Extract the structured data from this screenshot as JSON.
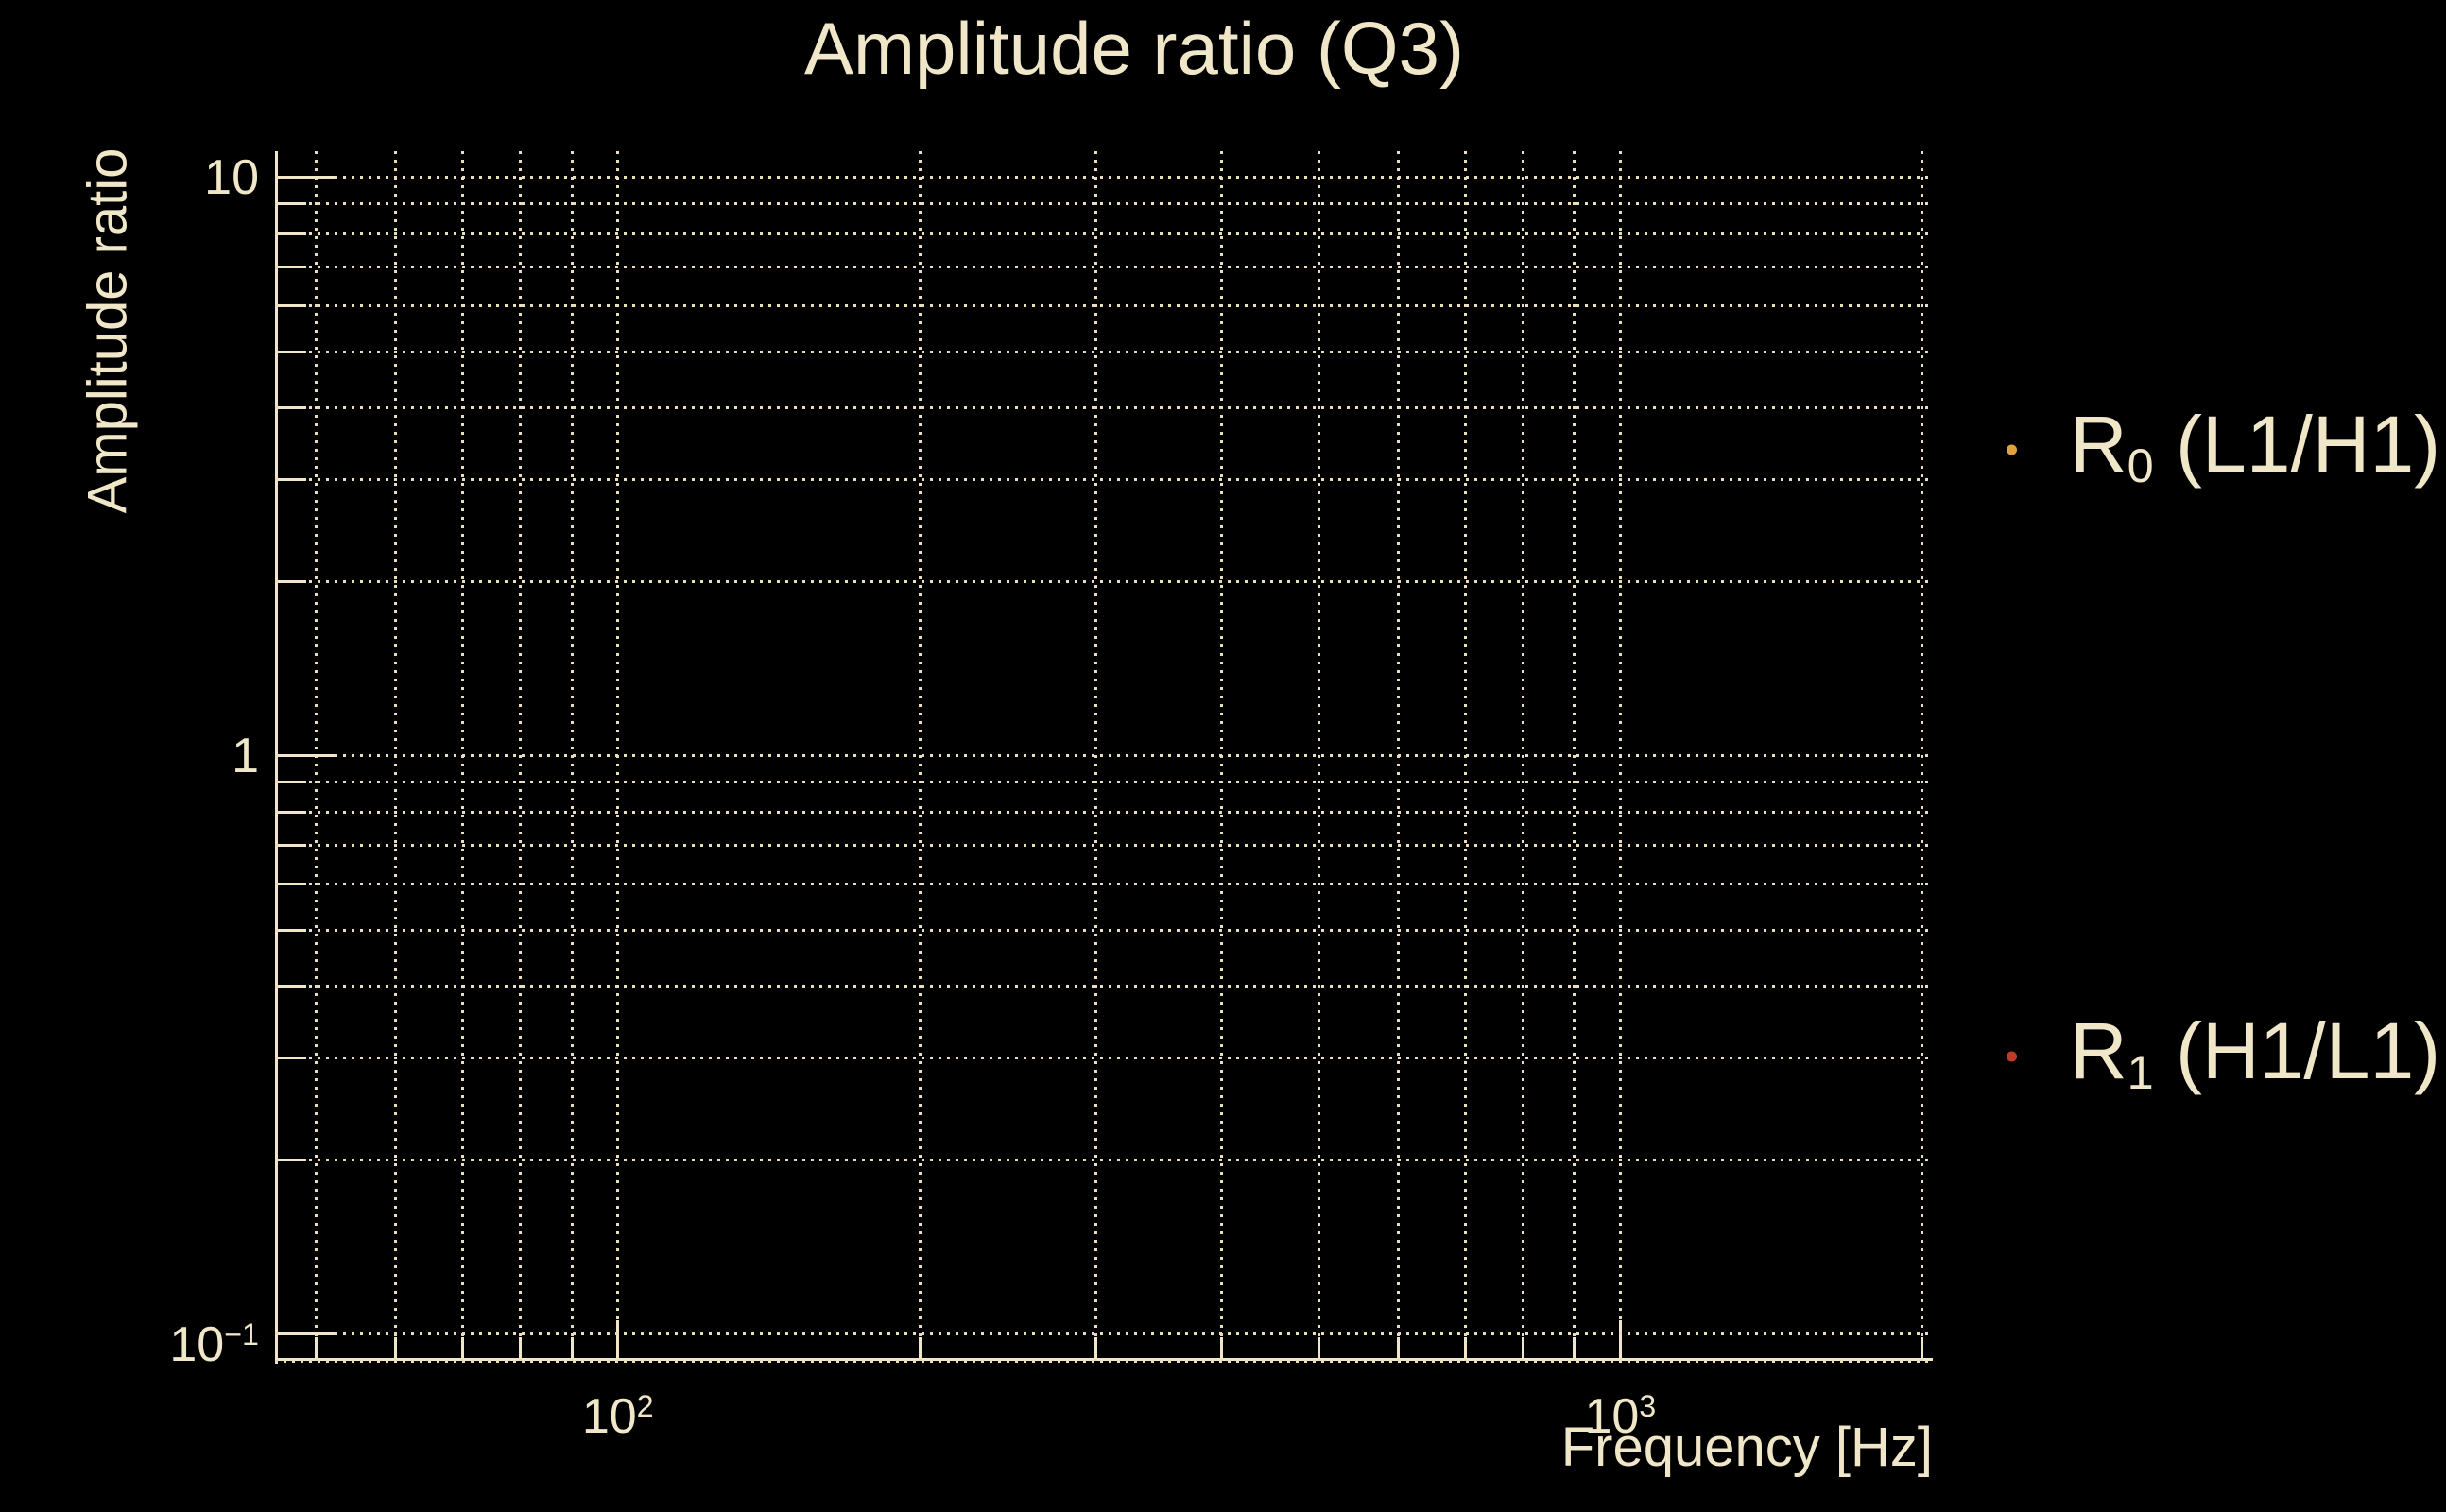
{
  "figure": {
    "background": "#000000",
    "text_color": "#F0E6C8",
    "grid_color": "#E9DDBD"
  },
  "chart_data": {
    "type": "scatter",
    "title": "Amplitude ratio (Q3)",
    "xlabel": "Frequency [Hz]",
    "ylabel": "Amplitude ratio",
    "xscale": "log",
    "yscale": "log",
    "xlim": [
      45.5,
      2050
    ],
    "ylim": [
      0.09,
      11.1
    ],
    "grid": true,
    "minor_grid": true,
    "grid_style": "dotted",
    "x_ticks": {
      "major": [
        100,
        1000
      ],
      "major_labels": [
        {
          "base": "10",
          "sup": "2"
        },
        {
          "base": "10",
          "sup": "3"
        }
      ],
      "minor": [
        50,
        60,
        70,
        80,
        90,
        200,
        300,
        400,
        500,
        600,
        700,
        800,
        900,
        2000
      ]
    },
    "y_ticks": {
      "major": [
        0.1,
        1,
        10
      ],
      "major_labels": [
        {
          "base": "10",
          "sup": "−1"
        },
        {
          "base": "1",
          "sup": ""
        },
        {
          "base": "10",
          "sup": ""
        }
      ],
      "minor": [
        0.09,
        0.2,
        0.3,
        0.4,
        0.5,
        0.6,
        0.7,
        0.8,
        0.9,
        2,
        3,
        4,
        5,
        6,
        7,
        8,
        9
      ]
    },
    "series": [
      {
        "label_base": "R",
        "label_sub": "0",
        "label_rest": " (L1/H1)",
        "marker": "point",
        "color": "#DFA23E",
        "points": []
      },
      {
        "label_base": "R",
        "label_sub": "1",
        "label_rest": " (H1/L1)",
        "marker": "point",
        "color": "#C03A28",
        "points": []
      }
    ],
    "legend": {
      "position": "outside-right",
      "frame": false
    }
  }
}
